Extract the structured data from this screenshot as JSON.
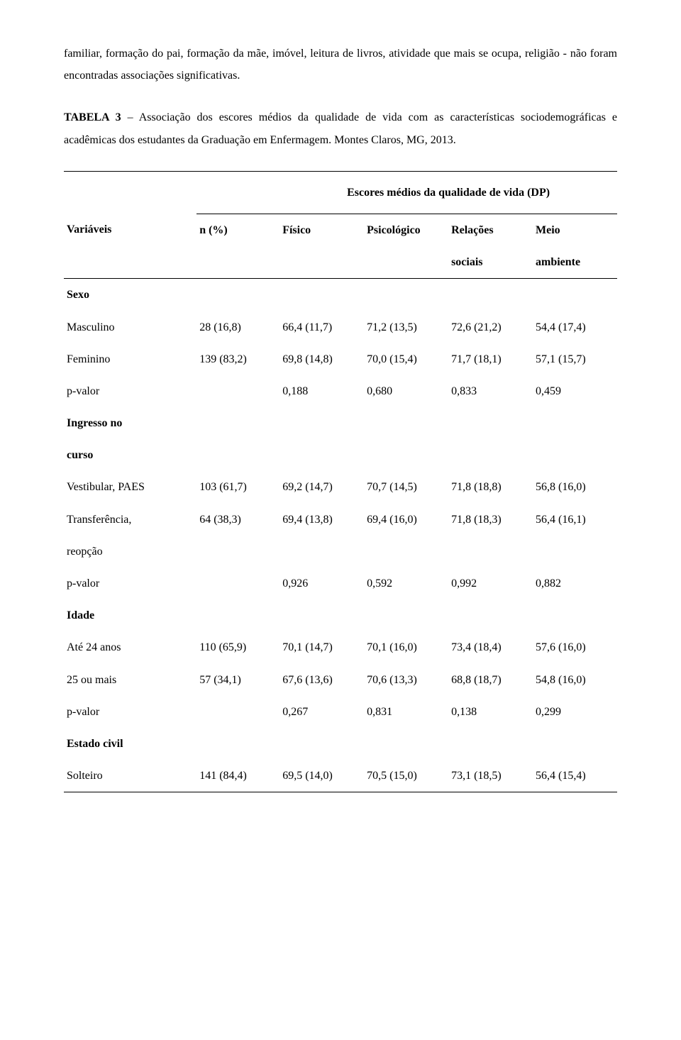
{
  "paragraph1": "familiar, formação do pai, formação da mãe, imóvel, leitura de livros, atividade que mais se ocupa, religião - não foram encontradas associações significativas.",
  "tableTitle_prefix": "TABELA 3",
  "tableTitle_rest": " – Associação dos escores médios da qualidade de vida com as características sociodemográficas e acadêmicas dos estudantes da Graduação em Enfermagem. Montes Claros, MG, 2013.",
  "groupHeader": "Escores médios da qualidade de vida (DP)",
  "headers": {
    "variaveis": "Variáveis",
    "n": "n (%)",
    "fisico": "Físico",
    "psico": "Psicológico",
    "relacoes_l1": "Relações",
    "relacoes_l2": "sociais",
    "meio_l1": "Meio",
    "meio_l2": "ambiente"
  },
  "sections": {
    "sexo": "Sexo",
    "ingresso1": "Ingresso no",
    "ingresso2": "curso",
    "idade": "Idade",
    "estado": "Estado civil"
  },
  "rows": {
    "masc": {
      "label": "Masculino",
      "n": "28 (16,8)",
      "c1": "66,4 (11,7)",
      "c2": "71,2 (13,5)",
      "c3": "72,6 (21,2)",
      "c4": "54,4 (17,4)"
    },
    "fem": {
      "label": "Feminino",
      "n": "139 (83,2)",
      "c1": "69,8 (14,8)",
      "c2": "70,0 (15,4)",
      "c3": "71,7 (18,1)",
      "c4": "57,1 (15,7)"
    },
    "p1": {
      "label": "p-valor",
      "n": "",
      "c1": "0,188",
      "c2": "0,680",
      "c3": "0,833",
      "c4": "0,459"
    },
    "vest": {
      "label": "Vestibular, PAES",
      "n": "103 (61,7)",
      "c1": "69,2 (14,7)",
      "c2": "70,7 (14,5)",
      "c3": "71,8 (18,8)",
      "c4": "56,8 (16,0)"
    },
    "trans1": {
      "label": "Transferência,",
      "n": "64 (38,3)",
      "c1": "69,4 (13,8)",
      "c2": "69,4 (16,0)",
      "c3": "71,8 (18,3)",
      "c4": "56,4 (16,1)"
    },
    "trans2": {
      "label": "reopção"
    },
    "p2": {
      "label": "p-valor",
      "n": "",
      "c1": "0,926",
      "c2": "0,592",
      "c3": "0,992",
      "c4": "0,882"
    },
    "ate24": {
      "label": "Até 24 anos",
      "n": "110 (65,9)",
      "c1": "70,1 (14,7)",
      "c2": "70,1 (16,0)",
      "c3": "73,4 (18,4)",
      "c4": "57,6 (16,0)"
    },
    "mais25": {
      "label": "25 ou mais",
      "n": "57 (34,1)",
      "c1": "67,6 (13,6)",
      "c2": "70,6 (13,3)",
      "c3": "68,8 (18,7)",
      "c4": "54,8 (16,0)"
    },
    "p3": {
      "label": "p-valor",
      "n": "",
      "c1": "0,267",
      "c2": "0,831",
      "c3": "0,138",
      "c4": "0,299"
    },
    "solt": {
      "label": "Solteiro",
      "n": "141 (84,4)",
      "c1": "69,5 (14,0)",
      "c2": "70,5 (15,0)",
      "c3": "73,1 (18,5)",
      "c4": "56,4 (15,4)"
    }
  }
}
